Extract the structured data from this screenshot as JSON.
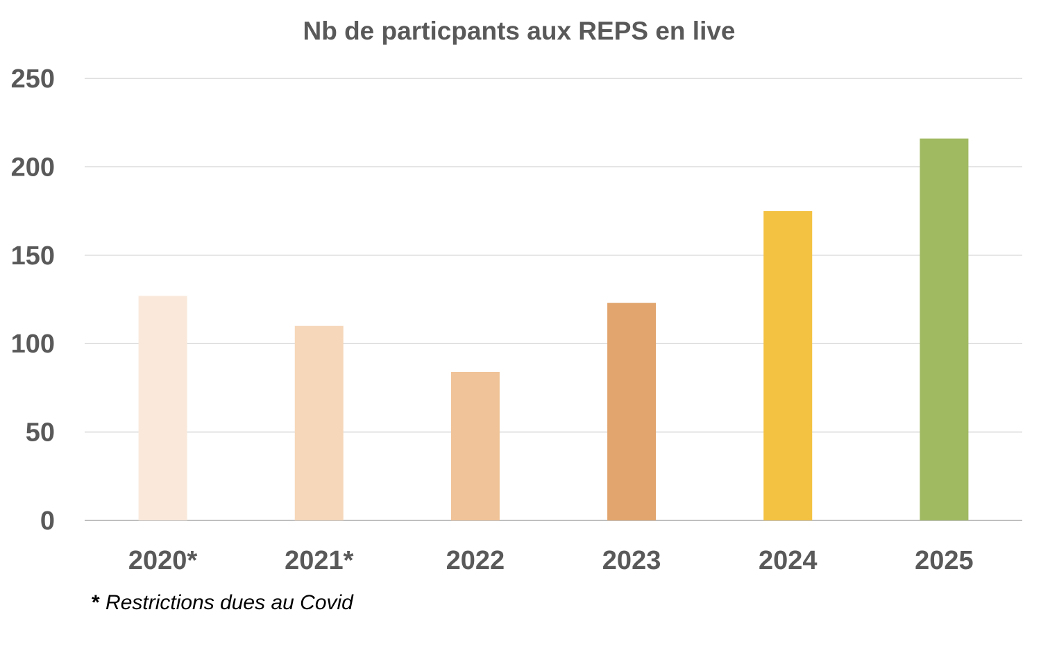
{
  "chart_data": {
    "type": "bar",
    "title": "Nb de particpants aux REPS en live",
    "categories": [
      "2020*",
      "2021*",
      "2022",
      "2023",
      "2024",
      "2025"
    ],
    "values": [
      127,
      110,
      84,
      123,
      175,
      216
    ],
    "colors": [
      "#FAE9DB",
      "#F6D7B9",
      "#F0C398",
      "#E1A56D",
      "#F4C242",
      "#A0BA62"
    ],
    "ylim": [
      0,
      250
    ],
    "yticks": [
      0,
      50,
      100,
      150,
      200,
      250
    ],
    "xlabel": "",
    "ylabel": "",
    "grid": true,
    "legend": "none",
    "footnote_marker": "*",
    "footnote_text": " Restrictions dues au Covid"
  }
}
